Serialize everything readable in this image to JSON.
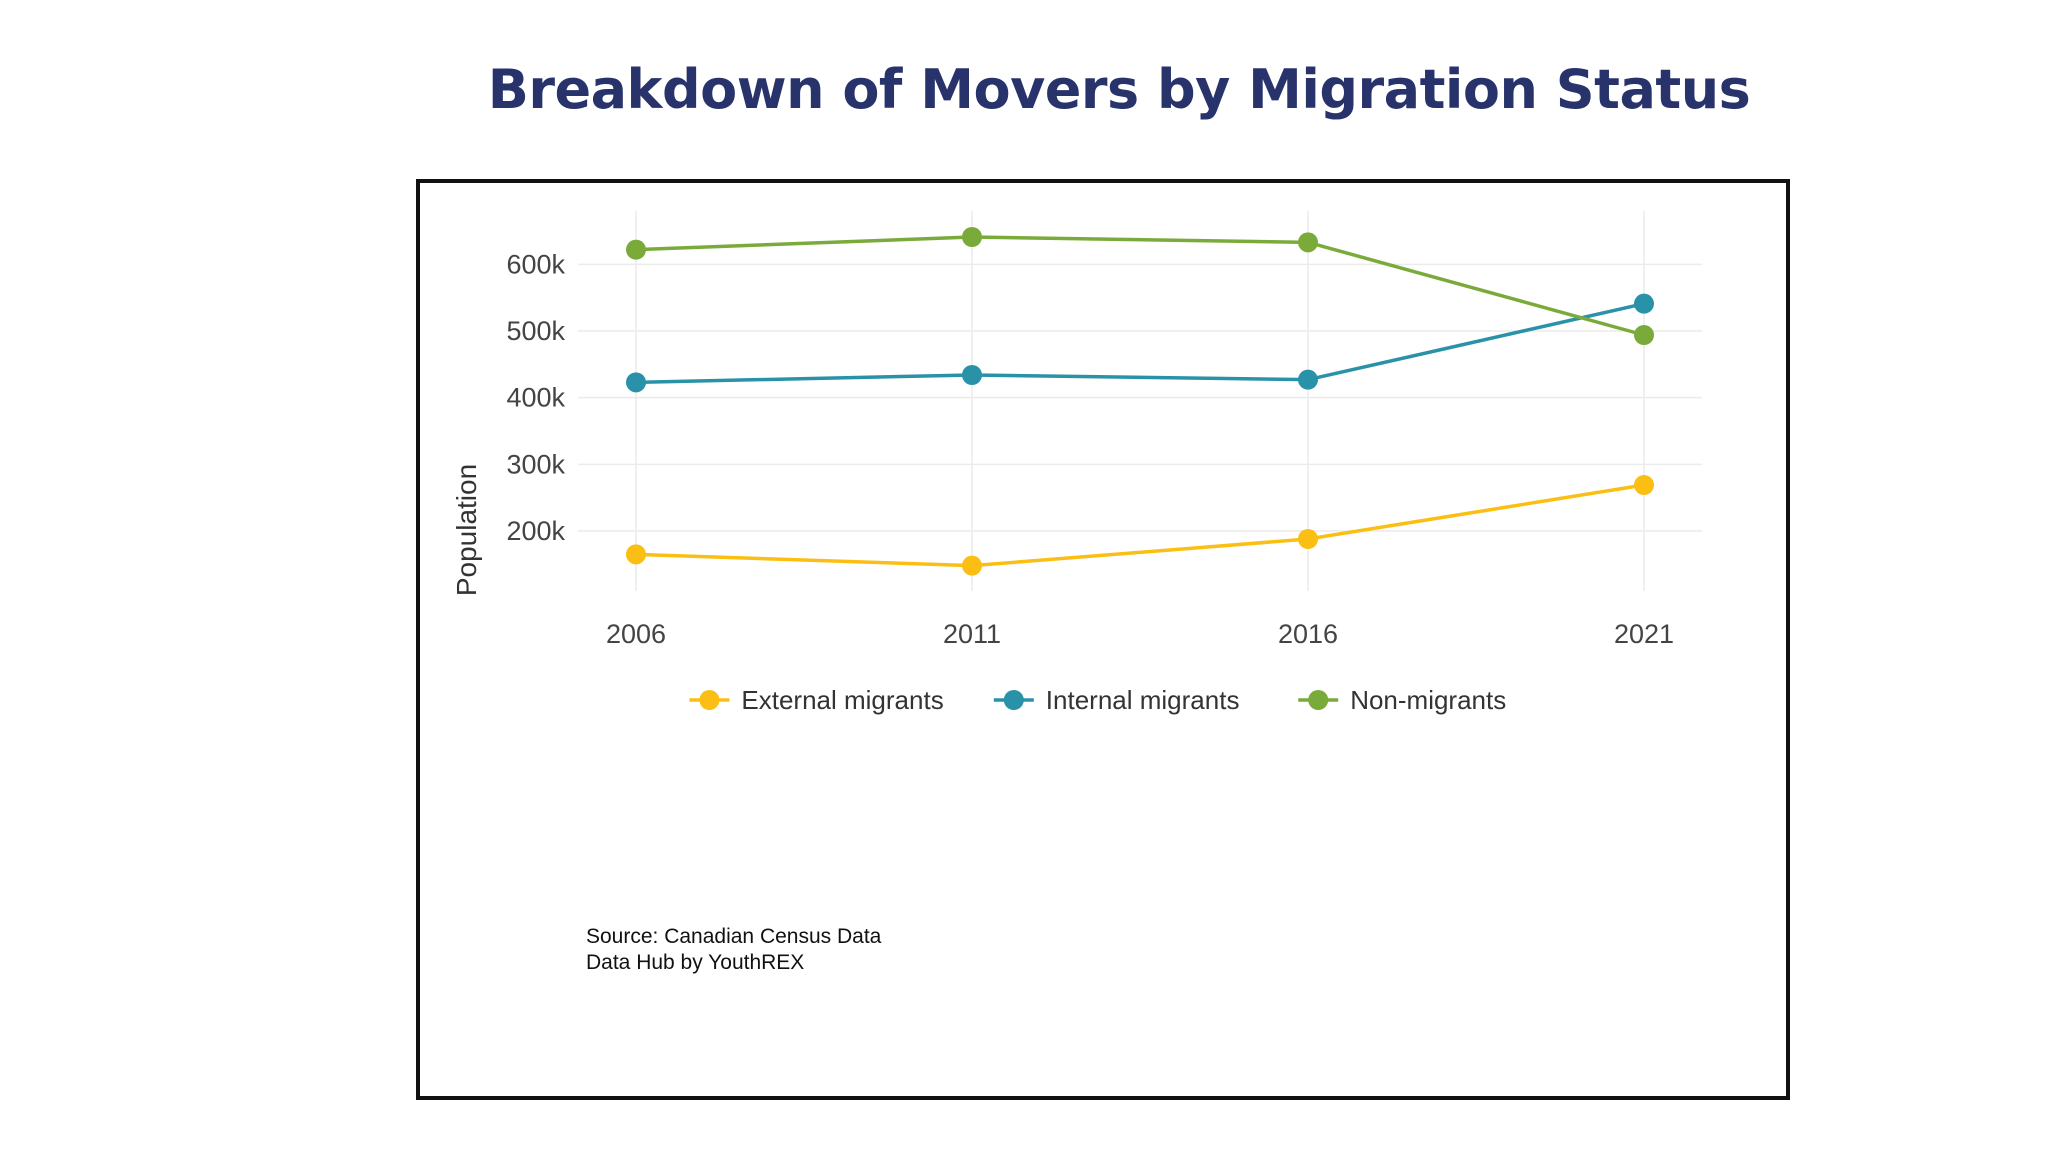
{
  "title": "Breakdown of Movers by Migration Status",
  "source_lines": [
    "Source: Canadian Census Data",
    "Data Hub by YouthREX"
  ],
  "chart_data": {
    "type": "line",
    "title": "Breakdown of Movers by Migration Status",
    "xlabel": "",
    "ylabel": "Population",
    "x": [
      "2006",
      "2011",
      "2016",
      "2021"
    ],
    "y_ticks": [
      200000,
      300000,
      400000,
      500000,
      600000
    ],
    "y_tick_labels": [
      "200k",
      "300k",
      "400k",
      "500k",
      "600k"
    ],
    "ylim": [
      110000,
      680000
    ],
    "grid": true,
    "legend_position": "bottom",
    "series": [
      {
        "name": "External migrants",
        "color": "#fbbf14",
        "values": [
          165000,
          148000,
          188000,
          269000
        ]
      },
      {
        "name": "Internal migrants",
        "color": "#2a92a8",
        "values": [
          423000,
          434000,
          427000,
          541000
        ]
      },
      {
        "name": "Non-migrants",
        "color": "#7aab3a",
        "values": [
          622000,
          641000,
          633000,
          494000
        ]
      }
    ]
  }
}
